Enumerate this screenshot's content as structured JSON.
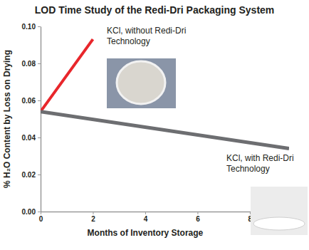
{
  "chart_data": {
    "type": "line",
    "title": "LOD Time Study of the Redi-Dri Packaging System",
    "x_label": "Months of Inventory Storage",
    "y_label": "% H₂O Content by Loss on Drying",
    "series": [
      {
        "name": "KCl, without Redi-Dri Technology",
        "color": "#e8262b",
        "x": [
          0,
          2
        ],
        "values": [
          0.054,
          0.093
        ]
      },
      {
        "name": "KCl, with Redi-Dri Technology",
        "color": "#6d6e71",
        "x": [
          0,
          9.5
        ],
        "values": [
          0.054,
          0.034
        ]
      }
    ],
    "xlim": [
      0,
      9.5
    ],
    "xticks": [
      0,
      2,
      4,
      6,
      8
    ],
    "ylim": [
      0,
      0.1
    ],
    "yticks": [
      {
        "value": 0,
        "label": "0.00"
      },
      0.02,
      0.04,
      0.06,
      0.08,
      {
        "value": 0.1,
        "label": "0.10"
      }
    ],
    "grid": false
  }
}
